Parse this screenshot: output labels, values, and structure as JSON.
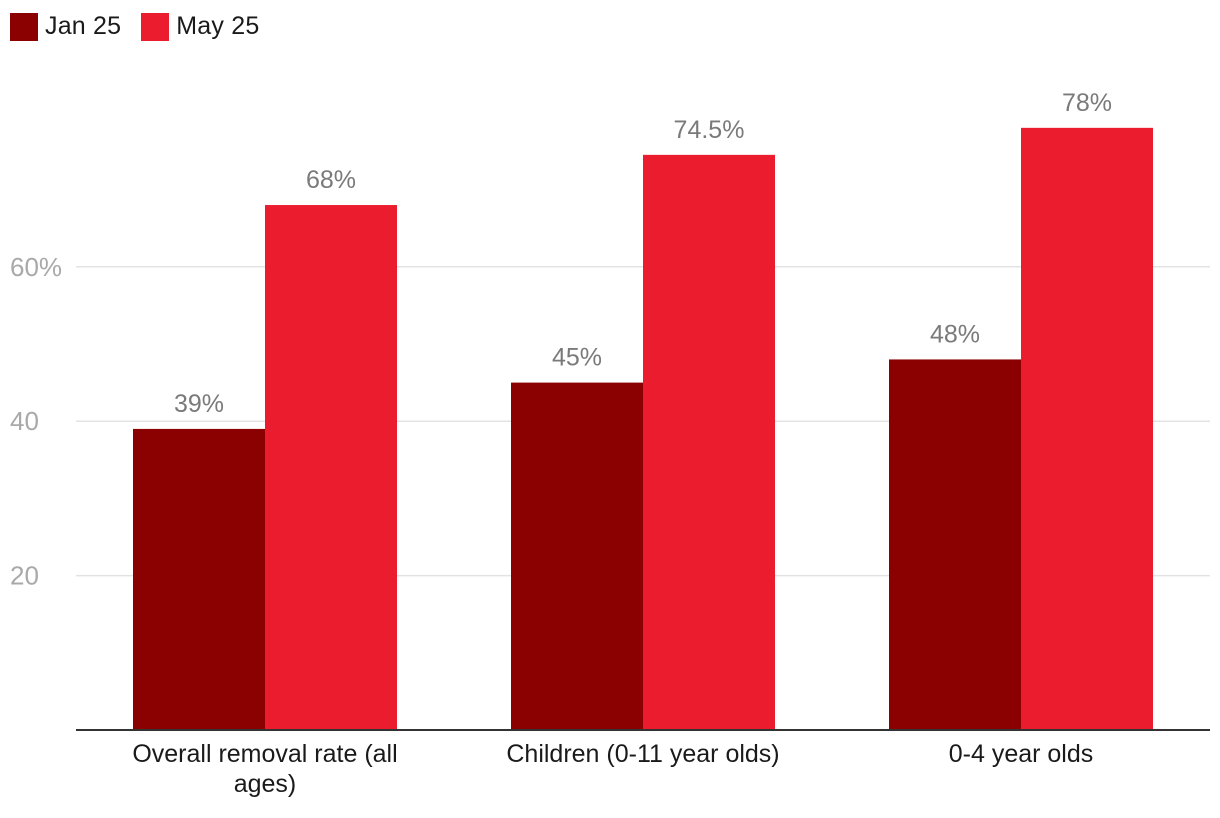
{
  "legend": {
    "items": [
      {
        "label": "Jan 25",
        "color": "#8b0000"
      },
      {
        "label": "May 25",
        "color": "#ec1c2f"
      }
    ]
  },
  "chart_data": {
    "type": "bar",
    "categories": [
      [
        "Overall removal rate (all",
        "ages)"
      ],
      [
        "Children (0-11 year olds)"
      ],
      [
        "0-4 year olds"
      ]
    ],
    "series": [
      {
        "name": "Jan 25",
        "values": [
          39,
          45,
          48
        ],
        "labels": [
          "39%",
          "45%",
          "48%"
        ],
        "color": "#8b0000"
      },
      {
        "name": "May 25",
        "values": [
          68,
          74.5,
          78
        ],
        "labels": [
          "68%",
          "74.5%",
          "78%"
        ],
        "color": "#ec1c2f"
      }
    ],
    "yticks": [
      {
        "value": 20,
        "label": "20"
      },
      {
        "value": 40,
        "label": "40"
      },
      {
        "value": 60,
        "label": "60%"
      }
    ],
    "ylim": [
      0,
      85
    ],
    "grid": true,
    "legend_position": "top-left",
    "title": "",
    "xlabel": "",
    "ylabel": ""
  }
}
